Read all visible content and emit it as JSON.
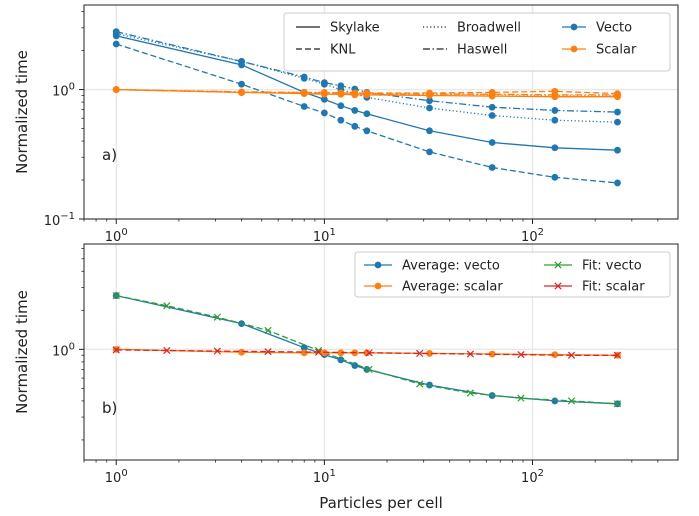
{
  "chart_data": [
    {
      "panel": "a)",
      "type": "line",
      "ylabel": "Normalized time",
      "xlabel": "",
      "x_scale": "log",
      "y_scale": "log",
      "xlim": [
        0.7,
        500
      ],
      "ylim": [
        0.1,
        4.5
      ],
      "x_ticks": [
        {
          "value": 1,
          "label": "10",
          "exp": "0"
        },
        {
          "value": 10,
          "label": "10",
          "exp": "1"
        },
        {
          "value": 100,
          "label": "10",
          "exp": "2"
        }
      ],
      "y_ticks": [
        {
          "value": 0.1,
          "label": "10",
          "exp": "−1"
        },
        {
          "value": 1,
          "label": "10",
          "exp": "0"
        }
      ],
      "grid": true,
      "legend_position": "top-right",
      "legend": [
        {
          "label": "Skylake",
          "kind": "linestyle",
          "dash": "solid"
        },
        {
          "label": "Broadwell",
          "kind": "linestyle",
          "dash": "dotted"
        },
        {
          "label": "Vecto",
          "kind": "color",
          "color": "#1f77b4"
        },
        {
          "label": "KNL",
          "kind": "linestyle",
          "dash": "dashed"
        },
        {
          "label": "Haswell",
          "kind": "linestyle",
          "dash": "dashdot"
        },
        {
          "label": "Scalar",
          "kind": "color",
          "color": "#ff7f0e"
        }
      ],
      "series": [
        {
          "machine": "Skylake",
          "variant": "Vecto",
          "color": "#1f77b4",
          "dash": "solid",
          "marker": "dot",
          "x": [
            1,
            4,
            8,
            10,
            12,
            14,
            16,
            32,
            64,
            128,
            256
          ],
          "y": [
            2.6,
            1.55,
            0.95,
            0.84,
            0.75,
            0.69,
            0.65,
            0.48,
            0.39,
            0.355,
            0.34
          ]
        },
        {
          "machine": "KNL",
          "variant": "Vecto",
          "color": "#1f77b4",
          "dash": "dashed",
          "marker": "dot",
          "x": [
            1,
            4,
            8,
            10,
            12,
            14,
            16,
            32,
            64,
            128,
            256
          ],
          "y": [
            2.25,
            1.1,
            0.74,
            0.66,
            0.58,
            0.52,
            0.48,
            0.33,
            0.25,
            0.21,
            0.19
          ]
        },
        {
          "machine": "Broadwell",
          "variant": "Vecto",
          "color": "#1f77b4",
          "dash": "dotted",
          "marker": "dot",
          "x": [
            1,
            4,
            8,
            10,
            12,
            14,
            16,
            32,
            64,
            128,
            256
          ],
          "y": [
            2.7,
            1.65,
            1.22,
            1.1,
            1.0,
            0.93,
            0.87,
            0.72,
            0.63,
            0.58,
            0.56
          ]
        },
        {
          "machine": "Haswell",
          "variant": "Vecto",
          "color": "#1f77b4",
          "dash": "dashdot",
          "marker": "dot",
          "x": [
            1,
            4,
            8,
            10,
            12,
            14,
            16,
            32,
            64,
            128,
            256
          ],
          "y": [
            2.8,
            1.65,
            1.25,
            1.13,
            1.07,
            1.01,
            0.95,
            0.82,
            0.73,
            0.69,
            0.67
          ]
        },
        {
          "machine": "Skylake",
          "variant": "Scalar",
          "color": "#ff7f0e",
          "dash": "solid",
          "marker": "dot",
          "x": [
            1,
            4,
            8,
            10,
            12,
            14,
            16,
            32,
            64,
            128,
            256
          ],
          "y": [
            1.0,
            0.95,
            0.93,
            0.92,
            0.92,
            0.91,
            0.91,
            0.9,
            0.89,
            0.88,
            0.88
          ]
        },
        {
          "machine": "KNL",
          "variant": "Scalar",
          "color": "#ff7f0e",
          "dash": "dashed",
          "marker": "dot",
          "x": [
            1,
            4,
            8,
            10,
            12,
            14,
            16,
            32,
            64,
            128,
            256
          ],
          "y": [
            1.0,
            0.95,
            0.94,
            0.94,
            0.94,
            0.94,
            0.94,
            0.94,
            0.95,
            0.97,
            0.93
          ]
        },
        {
          "machine": "Broadwell",
          "variant": "Scalar",
          "color": "#ff7f0e",
          "dash": "dotted",
          "marker": "dot",
          "x": [
            1,
            4,
            8,
            10,
            12,
            14,
            16,
            32,
            64,
            128,
            256
          ],
          "y": [
            1.0,
            0.95,
            0.95,
            0.94,
            0.94,
            0.93,
            0.93,
            0.92,
            0.91,
            0.9,
            0.9
          ]
        },
        {
          "machine": "Haswell",
          "variant": "Scalar",
          "color": "#ff7f0e",
          "dash": "dashdot",
          "marker": "dot",
          "x": [
            1,
            4,
            8,
            10,
            12,
            14,
            16,
            32,
            64,
            128,
            256
          ],
          "y": [
            1.0,
            0.96,
            0.95,
            0.95,
            0.94,
            0.94,
            0.93,
            0.92,
            0.92,
            0.91,
            0.91
          ]
        }
      ]
    },
    {
      "panel": "b)",
      "type": "line",
      "ylabel": "Normalized time",
      "xlabel": "Particles per cell",
      "x_scale": "log",
      "y_scale": "log",
      "xlim": [
        0.7,
        500
      ],
      "ylim": [
        0.14,
        6.5
      ],
      "x_ticks": [
        {
          "value": 1,
          "label": "10",
          "exp": "0"
        },
        {
          "value": 10,
          "label": "10",
          "exp": "1"
        },
        {
          "value": 100,
          "label": "10",
          "exp": "2"
        }
      ],
      "y_ticks": [
        {
          "value": 1,
          "label": "10",
          "exp": "0"
        }
      ],
      "grid": true,
      "legend_position": "top-right",
      "legend": [
        {
          "label": "Average: vecto",
          "color": "#1f77b4",
          "marker": "dot",
          "dash": "solid"
        },
        {
          "label": "Fit: vecto",
          "color": "#2ca02c",
          "marker": "x",
          "dash": "solid"
        },
        {
          "label": "Average: scalar",
          "color": "#ff7f0e",
          "marker": "dot",
          "dash": "solid"
        },
        {
          "label": "Fit: scalar",
          "color": "#d62728",
          "marker": "x",
          "dash": "solid"
        }
      ],
      "series": [
        {
          "name": "Average: vecto",
          "color": "#1f77b4",
          "dash": "solid",
          "marker": "dot",
          "x": [
            1,
            4,
            8,
            10,
            12,
            14,
            16,
            32,
            64,
            128,
            256
          ],
          "y": [
            2.6,
            1.58,
            1.03,
            0.91,
            0.83,
            0.75,
            0.7,
            0.53,
            0.44,
            0.4,
            0.38
          ]
        },
        {
          "name": "Fit: vecto",
          "color": "#2ca02c",
          "dash": "dashed",
          "marker": "x",
          "x": [
            1,
            1.75,
            3.06,
            5.36,
            9.38,
            16.4,
            28.7,
            50.3,
            88,
            154,
            256
          ],
          "y": [
            2.6,
            2.17,
            1.77,
            1.4,
            0.98,
            0.7,
            0.54,
            0.46,
            0.42,
            0.4,
            0.38
          ]
        },
        {
          "name": "Average: scalar",
          "color": "#ff7f0e",
          "dash": "solid",
          "marker": "dot",
          "x": [
            1,
            4,
            8,
            10,
            12,
            14,
            16,
            32,
            64,
            128,
            256
          ],
          "y": [
            1.0,
            0.95,
            0.94,
            0.94,
            0.94,
            0.94,
            0.94,
            0.93,
            0.92,
            0.91,
            0.9
          ]
        },
        {
          "name": "Fit: scalar",
          "color": "#d62728",
          "dash": "dashed",
          "marker": "x",
          "x": [
            1,
            1.75,
            3.06,
            5.36,
            9.38,
            16.4,
            28.7,
            50.3,
            88,
            154,
            256
          ],
          "y": [
            0.99,
            0.98,
            0.97,
            0.96,
            0.95,
            0.94,
            0.93,
            0.92,
            0.91,
            0.9,
            0.9
          ]
        }
      ]
    }
  ]
}
